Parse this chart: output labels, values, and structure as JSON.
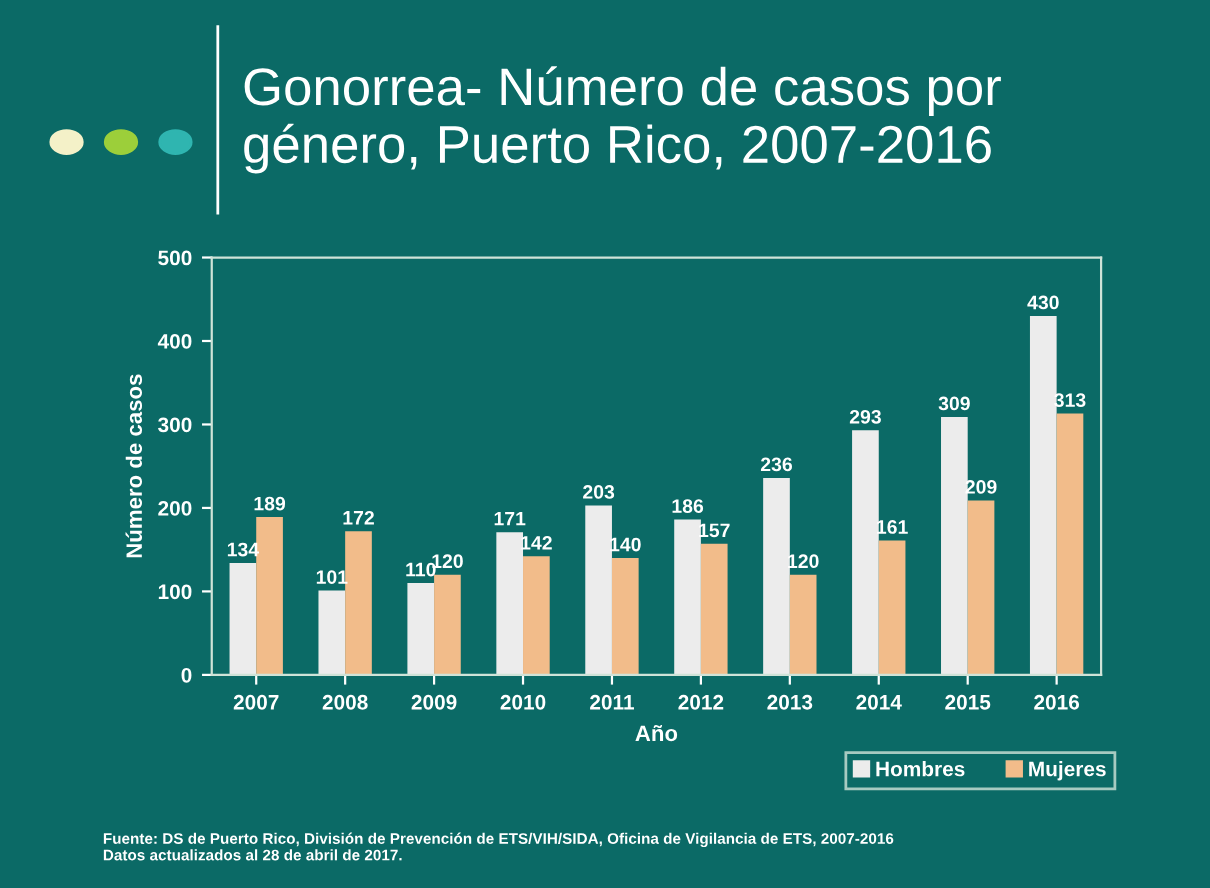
{
  "chart_data": {
    "type": "bar",
    "title": "Gonorrea- Número de casos por\ngénero, Puerto Rico, 2007-2016",
    "categories": [
      "2007",
      "2008",
      "2009",
      "2010",
      "2011",
      "2012",
      "2013",
      "2014",
      "2015",
      "2016"
    ],
    "series": [
      {
        "name": "Hombres",
        "color": "#ececec",
        "values": [
          134,
          101,
          110,
          171,
          203,
          186,
          236,
          293,
          309,
          430
        ]
      },
      {
        "name": "Mujeres",
        "color": "#f2bc8a",
        "values": [
          189,
          172,
          120,
          142,
          140,
          157,
          120,
          161,
          209,
          313
        ]
      }
    ],
    "xlabel": "Año",
    "ylabel": "Número de casos",
    "ylim": [
      0,
      500
    ],
    "yticks": [
      0,
      100,
      200,
      300,
      400,
      500
    ],
    "data_labels": true,
    "grid": false,
    "legend": "bottom right",
    "annotations": [
      "Fuente: DS de Puerto Rico, División de Prevención de ETS/VIH/SIDA, Oficina de Vigilancia de ETS, 2007-2016\nDatos actualizados al 28 de abril de 2017."
    ]
  }
}
